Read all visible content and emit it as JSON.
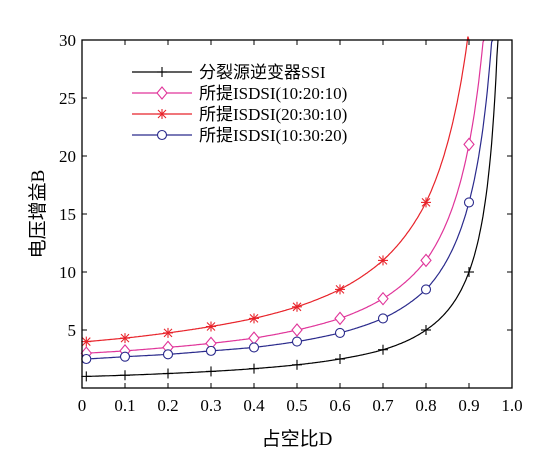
{
  "chart_data": {
    "type": "line",
    "xlabel": "占空比D",
    "ylabel": "电压增益B",
    "xlim": [
      0,
      1.0
    ],
    "ylim": [
      0,
      30
    ],
    "x_ticks": [
      "0",
      "0.1",
      "0.2",
      "0.3",
      "0.4",
      "0.5",
      "0.6",
      "0.7",
      "0.8",
      "0.9",
      "1.0"
    ],
    "y_ticks": [
      "5",
      "10",
      "15",
      "20",
      "25",
      "30"
    ],
    "grid": false,
    "legend_position": "top-left",
    "marker_x": [
      0.01,
      0.1,
      0.2,
      0.3,
      0.4,
      0.5,
      0.6,
      0.7,
      0.8,
      0.9
    ],
    "series": [
      {
        "name": "分裂源逆变器SSI",
        "color": "#000000",
        "marker": "plus",
        "values": [
          1.0,
          1.1,
          1.25,
          1.43,
          1.67,
          2.0,
          2.5,
          3.3,
          5.0,
          10.0
        ]
      },
      {
        "name": "所提ISDSI(10:20:10)",
        "color": "#e0359a",
        "marker": "diamond",
        "values": [
          3.0,
          3.2,
          3.5,
          3.85,
          4.3,
          5.0,
          6.0,
          7.7,
          11.0,
          21.0
        ]
      },
      {
        "name": "所提ISDSI(20:30:10)",
        "color": "#e8232a",
        "marker": "asterisk",
        "values": [
          4.0,
          4.3,
          4.75,
          5.3,
          6.0,
          7.0,
          8.5,
          11.0,
          16.0,
          31.0
        ]
      },
      {
        "name": "所提ISDSI(10:30:20)",
        "color": "#2a2a8c",
        "marker": "circle",
        "values": [
          2.5,
          2.7,
          2.9,
          3.2,
          3.5,
          4.0,
          4.75,
          6.0,
          8.5,
          16.0
        ]
      }
    ]
  }
}
